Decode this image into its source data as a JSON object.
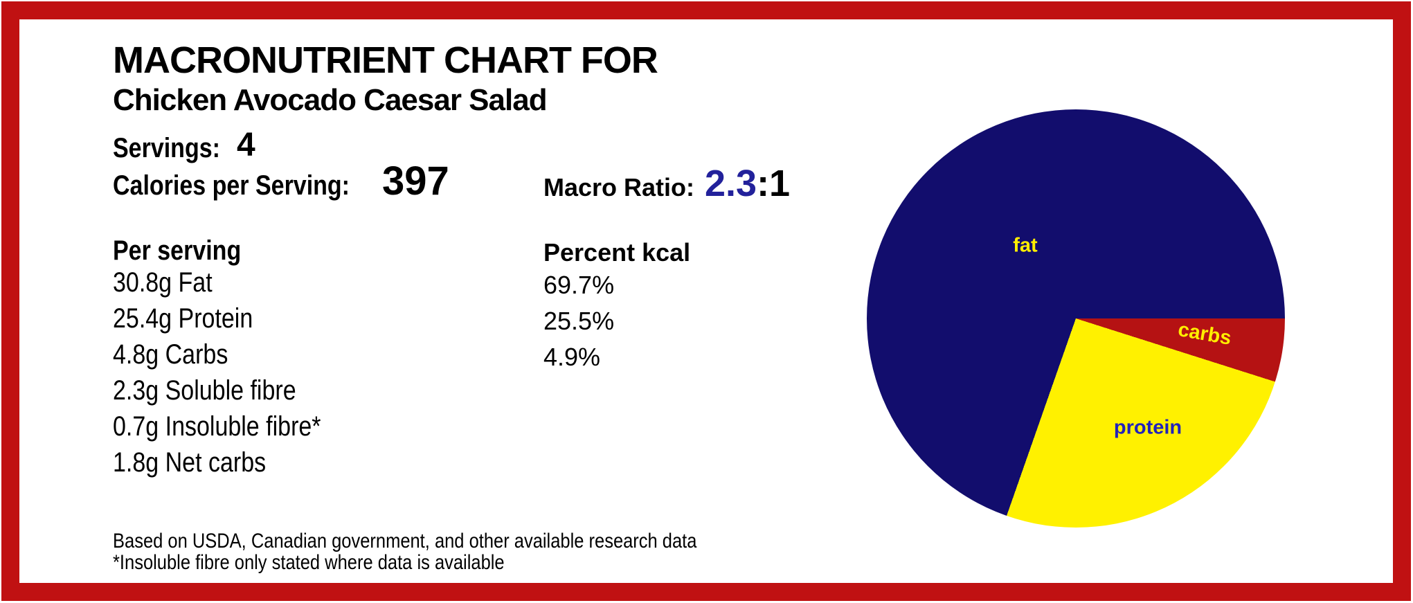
{
  "header": {
    "title": "MACRONUTRIENT CHART FOR",
    "subtitle": "Chicken Avocado Caesar Salad",
    "servings_label": "Servings:",
    "servings_value": "4",
    "calories_label": "Calories per Serving:",
    "calories_value": "397",
    "macro_ratio_label": "Macro Ratio:",
    "macro_ratio_value": "2.3",
    "macro_ratio_suffix": ":1"
  },
  "per_serving": {
    "heading": "Per serving",
    "rows": [
      "30.8g Fat",
      "25.4g Protein",
      "4.8g Carbs",
      "2.3g Soluble fibre",
      "0.7g Insoluble fibre*",
      "1.8g Net carbs"
    ]
  },
  "percent_kcal": {
    "heading": "Percent kcal",
    "rows": [
      "69.7%",
      "25.5%",
      "4.9%"
    ]
  },
  "footnotes": {
    "line1": "Based on USDA, Canadian government, and other available research data",
    "line2": "*Insoluble fibre only stated where data is available"
  },
  "chart_data": {
    "type": "pie",
    "slices": [
      {
        "label": "fat",
        "value": 69.7,
        "color": "#120d6d",
        "label_color": "#ffee00"
      },
      {
        "label": "protein",
        "value": 25.5,
        "color": "#fff100",
        "label_color": "#2222bb"
      },
      {
        "label": "carbs",
        "value": 4.9,
        "color": "#b51213",
        "label_color": "#ffee00"
      }
    ],
    "draw_order": [
      "carbs",
      "protein",
      "fat"
    ],
    "start_angle": "3 o'clock, clockwise",
    "legend_position": "labels inside slices"
  },
  "colors": {
    "border": "#c01112",
    "background": "#ffffff",
    "text": "#000000",
    "ratio_value": "#22219b"
  }
}
